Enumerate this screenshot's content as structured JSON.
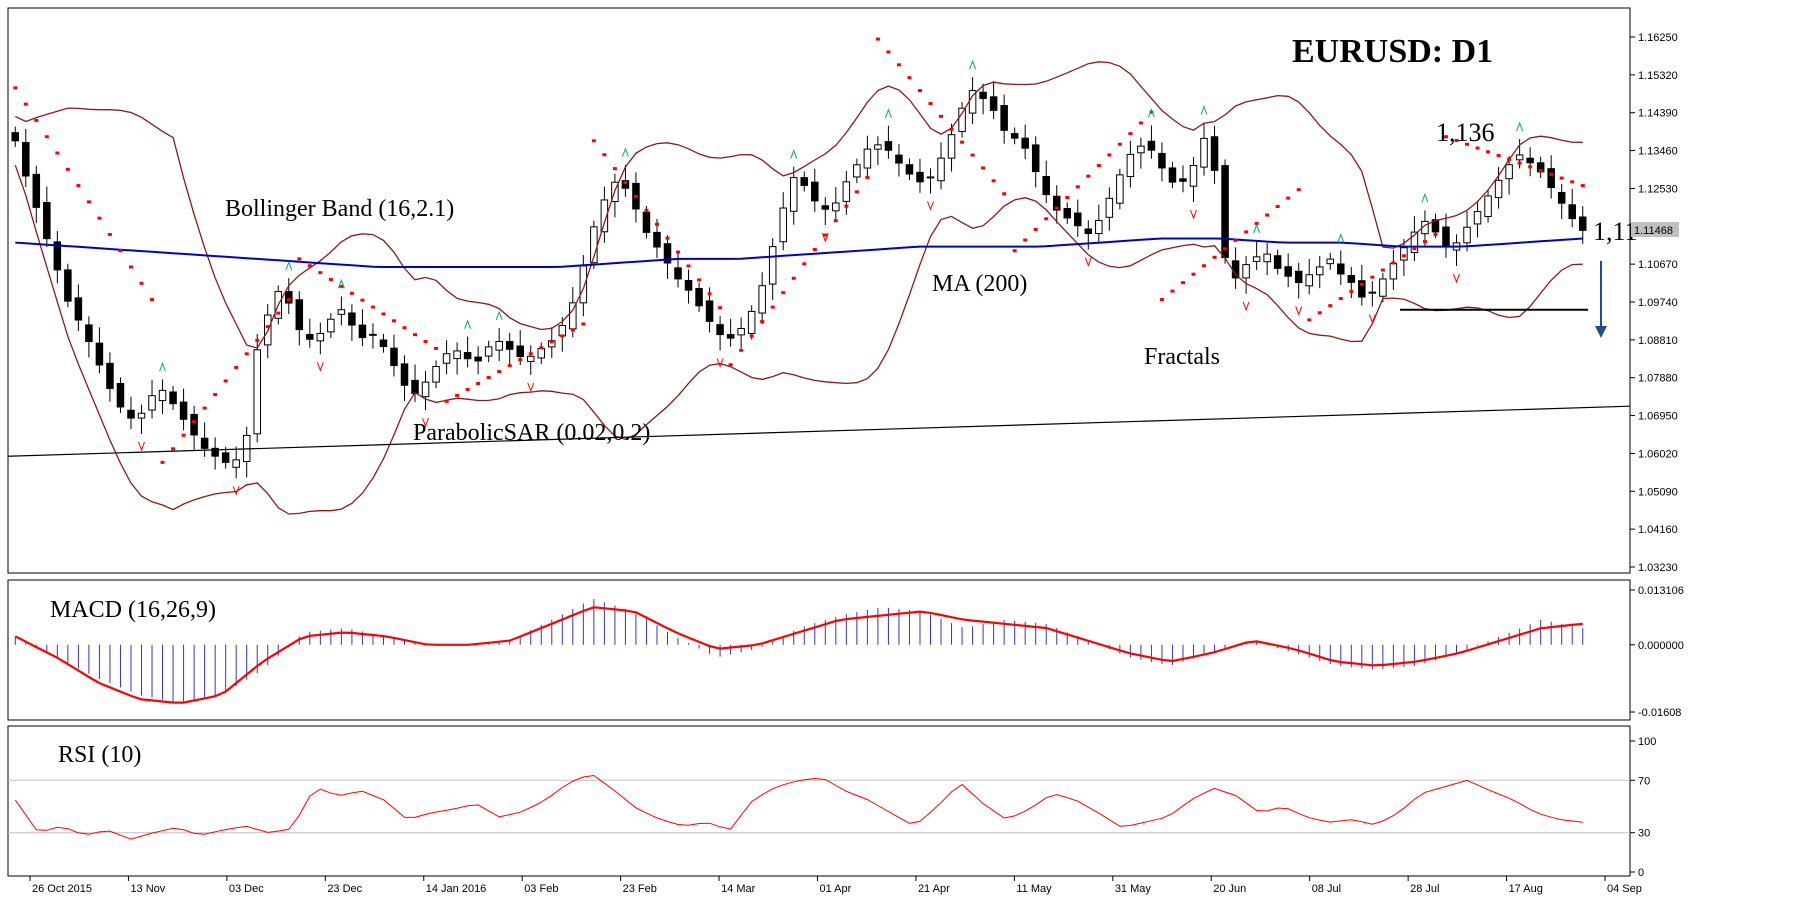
{
  "chart_data": {
    "type": "candlestick",
    "title": "EURUSD: D1",
    "last_price_label": "1.11468",
    "colors": {
      "up": "#ffffff",
      "down": "#000000",
      "ma": "#0000cc",
      "bollinger": "#8b1a1a",
      "sar": "#ff0000",
      "fractal_up": "#00b050",
      "fractal_down": "#ff0000",
      "macd_hist": "#3333cc",
      "macd_signal": "#ff0000",
      "rsi": "#ff0000",
      "trend": "#000000",
      "arrow": "#1f4e8a"
    },
    "price_axis": {
      "min": 1.0323,
      "max": 1.1625,
      "ticks": [
        "1.16250",
        "1.15320",
        "1.14390",
        "1.13460",
        "1.12530",
        "1.11600",
        "1.10670",
        "1.09740",
        "1.08810",
        "1.07880",
        "1.06950",
        "1.06020",
        "1.05090",
        "1.04160",
        "1.03230"
      ]
    },
    "x_ticks": [
      "26 Oct 2015",
      "13 Nov",
      "03 Dec",
      "23 Dec",
      "14 Jan 2016",
      "03 Feb",
      "23 Feb",
      "14 Mar",
      "01 Apr",
      "21 Apr",
      "11 May",
      "31 May",
      "20 Jun",
      "08 Jul",
      "28 Jul",
      "17 Aug",
      "04 Sep"
    ],
    "price_path": [
      1.137,
      1.128,
      1.12,
      1.112,
      1.104,
      1.096,
      1.092,
      1.086,
      1.08,
      1.074,
      1.07,
      1.068,
      1.072,
      1.077,
      1.074,
      1.07,
      1.066,
      1.062,
      1.06,
      1.058,
      1.058,
      1.062,
      1.085,
      1.094,
      1.1,
      1.097,
      1.09,
      1.088,
      1.09,
      1.094,
      1.096,
      1.09,
      1.088,
      1.09,
      1.084,
      1.08,
      1.074,
      1.076,
      1.08,
      1.084,
      1.086,
      1.084,
      1.082,
      1.086,
      1.088,
      1.086,
      1.084,
      1.084,
      1.086,
      1.088,
      1.092,
      1.098,
      1.108,
      1.118,
      1.124,
      1.128,
      1.124,
      1.118,
      1.112,
      1.11,
      1.104,
      1.102,
      1.098,
      1.094,
      1.09,
      1.088,
      1.09,
      1.094,
      1.1,
      1.11,
      1.12,
      1.128,
      1.126,
      1.122,
      1.12,
      1.122,
      1.128,
      1.132,
      1.136,
      1.136,
      1.134,
      1.13,
      1.128,
      1.126,
      1.13,
      1.136,
      1.142,
      1.15,
      1.148,
      1.146,
      1.14,
      1.138,
      1.136,
      1.13,
      1.124,
      1.12,
      1.118,
      1.116,
      1.114,
      1.118,
      1.124,
      1.13,
      1.135,
      1.136,
      1.134,
      1.128,
      1.126,
      1.128,
      1.134,
      1.142,
      1.112,
      1.102,
      1.106,
      1.108,
      1.11,
      1.106,
      1.104,
      1.102,
      1.104,
      1.106,
      1.108,
      1.104,
      1.102,
      1.098,
      1.1,
      1.104,
      1.108,
      1.112,
      1.116,
      1.118,
      1.112,
      1.11,
      1.114,
      1.118,
      1.122,
      1.126,
      1.13,
      1.134,
      1.132,
      1.13,
      1.126,
      1.122,
      1.118,
      1.115
    ],
    "ma_path": [
      1.112,
      1.111,
      1.11,
      1.109,
      1.108,
      1.107,
      1.106,
      1.106,
      1.106,
      1.106,
      1.107,
      1.108,
      1.108,
      1.109,
      1.11,
      1.111,
      1.111,
      1.111,
      1.112,
      1.113,
      1.113,
      1.112,
      1.112,
      1.111,
      1.111,
      1.112,
      1.113
    ],
    "sar_segments": [
      [
        1.15,
        1.098
      ],
      [
        1.058,
        1.098
      ],
      [
        1.108,
        1.086
      ],
      [
        1.073,
        1.092
      ],
      [
        1.137,
        1.096
      ],
      [
        1.082,
        1.128
      ],
      [
        1.162,
        1.124
      ],
      [
        1.11,
        1.144
      ],
      [
        1.098,
        1.125
      ],
      [
        1.093,
        1.114
      ],
      [
        1.138,
        1.126
      ]
    ],
    "macd": {
      "min": -0.01608,
      "max": 0.0131,
      "ticks": [
        "0.013106",
        "0.000000",
        "-0.01608"
      ],
      "hist": [
        0.002,
        -0.003,
        -0.008,
        -0.012,
        -0.014,
        -0.012,
        -0.006,
        0.003,
        0.004,
        0.002,
        0.0,
        0.0,
        0.001,
        0.006,
        0.011,
        0.008,
        0.002,
        -0.003,
        -0.001,
        0.004,
        0.007,
        0.009,
        0.008,
        0.004,
        0.006,
        0.005,
        0.001,
        -0.003,
        -0.005,
        -0.002,
        0.001,
        -0.002,
        -0.005,
        -0.006,
        -0.005,
        -0.002,
        0.002,
        0.006,
        0.004
      ],
      "signal": [
        0.002,
        -0.003,
        -0.009,
        -0.013,
        -0.014,
        -0.012,
        -0.004,
        0.002,
        0.003,
        0.002,
        0.0,
        0.0,
        0.001,
        0.005,
        0.009,
        0.008,
        0.003,
        -0.001,
        0.0,
        0.003,
        0.006,
        0.007,
        0.008,
        0.006,
        0.005,
        0.004,
        0.001,
        -0.002,
        -0.004,
        -0.002,
        0.001,
        -0.001,
        -0.004,
        -0.005,
        -0.004,
        -0.002,
        0.001,
        0.004,
        0.005
      ]
    },
    "rsi": {
      "min": 0,
      "max": 100,
      "ticks": [
        "100",
        "70",
        "30",
        "0"
      ],
      "values": [
        55,
        30,
        35,
        28,
        32,
        25,
        30,
        34,
        28,
        32,
        35,
        30,
        33,
        65,
        58,
        62,
        55,
        40,
        45,
        48,
        52,
        42,
        46,
        55,
        68,
        75,
        62,
        48,
        40,
        35,
        38,
        32,
        55,
        65,
        70,
        72,
        62,
        55,
        45,
        35,
        50,
        68,
        52,
        40,
        48,
        60,
        55,
        45,
        34,
        38,
        42,
        55,
        64,
        58,
        45,
        50,
        42,
        38,
        40,
        36,
        45,
        60,
        65,
        70,
        62,
        55,
        45,
        40,
        38
      ]
    },
    "labels": {
      "bollinger": "Bollinger Band (16,2.1)",
      "parabolic": "ParabolicSAR (0.02,0.2)",
      "ma": "MA (200)",
      "fractals": "Fractals",
      "price_1136": "1,136",
      "price_111": "1,11",
      "macd": "MACD (16,26,9)",
      "rsi": "RSI (10)"
    }
  }
}
